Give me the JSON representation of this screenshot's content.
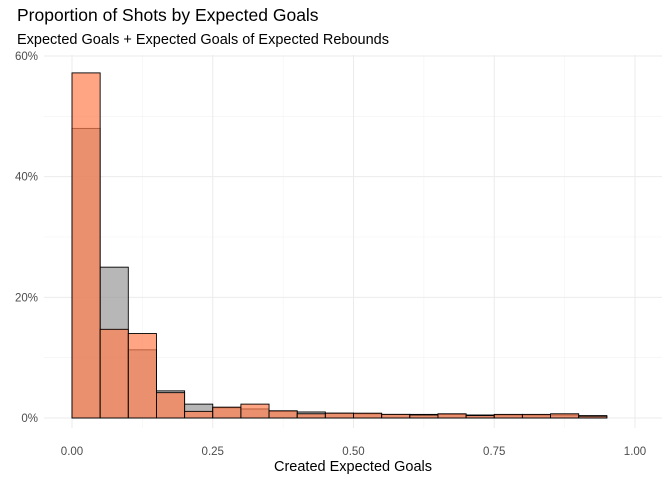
{
  "chart_data": {
    "type": "bar",
    "title": "Proportion of Shots by Expected Goals",
    "subtitle": "Expected Goals + Expected Goals of Expected Rebounds",
    "xlabel": "Created Expected Goals",
    "ylabel": "",
    "xlim": [
      0,
      1
    ],
    "ylim": [
      0,
      0.6
    ],
    "x_ticks": [
      0,
      0.25,
      0.5,
      0.75,
      1.0
    ],
    "x_tick_labels": [
      "0.00",
      "0.25",
      "0.50",
      "0.75",
      "1.00"
    ],
    "y_ticks": [
      0,
      0.2,
      0.4,
      0.6
    ],
    "y_tick_labels": [
      "0%",
      "20%",
      "40%",
      "60%"
    ],
    "grid": true,
    "bin_width": 0.05,
    "bin_starts": [
      0.0,
      0.05,
      0.1,
      0.15,
      0.2,
      0.25,
      0.3,
      0.35,
      0.4,
      0.45,
      0.5,
      0.55,
      0.6,
      0.65,
      0.7,
      0.75,
      0.8,
      0.85,
      0.9,
      0.95
    ],
    "series": [
      {
        "color": "#999999",
        "values": [
          0.48,
          0.25,
          0.113,
          0.045,
          0.023,
          0.017,
          0.015,
          0.011,
          0.01,
          0.008,
          0.007,
          0.006,
          0.006,
          0.006,
          0.005,
          0.005,
          0.005,
          0.005,
          0.004,
          0.0
        ]
      },
      {
        "color": "#ff7f50",
        "values": [
          0.572,
          0.147,
          0.14,
          0.042,
          0.011,
          0.018,
          0.023,
          0.012,
          0.007,
          0.008,
          0.008,
          0.006,
          0.005,
          0.007,
          0.004,
          0.006,
          0.006,
          0.007,
          0.003,
          0.0
        ]
      }
    ]
  }
}
